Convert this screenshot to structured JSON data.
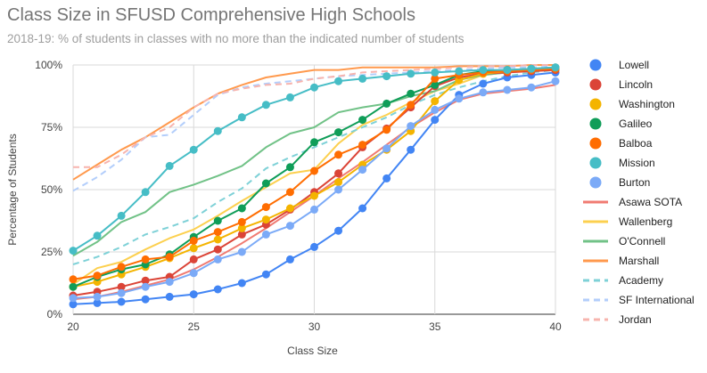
{
  "title": "Class Size in SFUSD Comprehensive High Schools",
  "subtitle": "2018-19: % of students in classes with no more than the indicated number of students",
  "chart_data": {
    "type": "line",
    "title": "Class Size in SFUSD Comprehensive High Schools",
    "subtitle": "2018-19: % of students in classes with no more than the indicated number of students",
    "xlabel": "Class Size",
    "ylabel": "Percentage of Students",
    "xlim": [
      20,
      40
    ],
    "ylim": [
      0,
      100
    ],
    "x_ticks": [
      20,
      25,
      30,
      35,
      40
    ],
    "y_ticks": [
      0,
      25,
      50,
      75,
      100
    ],
    "y_tick_labels": [
      "0%",
      "25%",
      "50%",
      "75%",
      "100%"
    ],
    "grid": true,
    "legend_position": "right",
    "x": [
      20,
      21,
      22,
      23,
      24,
      25,
      26,
      27,
      28,
      29,
      30,
      31,
      32,
      33,
      34,
      35,
      36,
      37,
      38,
      39,
      40
    ],
    "series": [
      {
        "name": "Lowell",
        "color": "#4285f4",
        "style": "points-line",
        "values": [
          4,
          4.5,
          5,
          6,
          7,
          8,
          10,
          12.5,
          16,
          22,
          27,
          33.5,
          42.5,
          54.5,
          66,
          78,
          88,
          92.5,
          95,
          96,
          97
        ]
      },
      {
        "name": "Lincoln",
        "color": "#db4437",
        "style": "points-line",
        "values": [
          7.5,
          9,
          11,
          13.5,
          15,
          22,
          26,
          32,
          36,
          42,
          49,
          56.5,
          67,
          74.5,
          83,
          91.5,
          95,
          96.5,
          97,
          97.5,
          98
        ]
      },
      {
        "name": "Washington",
        "color": "#f4b400",
        "style": "points-line",
        "values": [
          11,
          13,
          16,
          19,
          22.5,
          26.5,
          30,
          34.5,
          38,
          42.5,
          47.5,
          53,
          60,
          66,
          73.5,
          85.5,
          94,
          96.5,
          97.5,
          98,
          98.5
        ]
      },
      {
        "name": "Galileo",
        "color": "#0f9d58",
        "style": "points-line",
        "values": [
          11,
          15,
          18,
          20,
          24,
          31,
          37.5,
          42.5,
          52.5,
          59,
          69,
          73,
          78,
          84.5,
          88.5,
          92,
          96,
          97.5,
          98,
          98.5,
          99
        ]
      },
      {
        "name": "Balboa",
        "color": "#ff6d01",
        "style": "points-line",
        "values": [
          14,
          15.5,
          19,
          22,
          23,
          29.5,
          33,
          37,
          43,
          49,
          57.5,
          64,
          68,
          74,
          84,
          94.5,
          96,
          97,
          97.5,
          98,
          98.5
        ]
      },
      {
        "name": "Mission",
        "color": "#46bdc6",
        "style": "points-line",
        "values": [
          25.5,
          31.5,
          39.5,
          49,
          59.5,
          66,
          73.5,
          79,
          84,
          87,
          91,
          93.5,
          94.5,
          95.5,
          96.5,
          97,
          97.5,
          98,
          98,
          98.5,
          99
        ]
      },
      {
        "name": "Burton",
        "color": "#7baaf7",
        "style": "points-line",
        "values": [
          6.5,
          7,
          8.5,
          11,
          13,
          16.5,
          22,
          25,
          32,
          35.5,
          42,
          50,
          58,
          66.5,
          75.5,
          82,
          86.5,
          89,
          90,
          91,
          93.5
        ]
      },
      {
        "name": "Asawa SOTA",
        "color": "#f07b72",
        "style": "line",
        "values": [
          6,
          7,
          9,
          11.5,
          14,
          18,
          23,
          28.5,
          34.5,
          41,
          47.5,
          54.5,
          61,
          68,
          75,
          81,
          86,
          88.5,
          89.5,
          90.5,
          92
        ]
      },
      {
        "name": "Wallenberg",
        "color": "#fcd04f",
        "style": "line",
        "values": [
          12,
          18.5,
          21,
          26,
          30.5,
          34,
          39.5,
          45.5,
          51,
          56.5,
          58,
          68.5,
          76,
          80,
          85,
          89.5,
          92.5,
          96,
          97,
          98,
          99
        ]
      },
      {
        "name": "O'Connell",
        "color": "#71c287",
        "style": "line",
        "values": [
          23.5,
          29,
          37,
          41,
          49,
          52,
          55.5,
          59.5,
          67,
          72.5,
          75,
          81,
          83,
          84.5,
          87.5,
          89.5,
          94,
          96,
          97,
          98,
          99
        ]
      },
      {
        "name": "Marshall",
        "color": "#ff994d",
        "style": "line",
        "values": [
          54,
          60,
          66,
          71,
          77,
          83,
          88.5,
          92,
          95,
          96.5,
          98,
          98,
          99,
          99,
          99,
          99,
          99.5,
          99.5,
          99.5,
          100,
          100
        ]
      },
      {
        "name": "Academy",
        "color": "#7ed1d7",
        "style": "dashed",
        "values": [
          20,
          23,
          27,
          32,
          35,
          38.5,
          45,
          50.5,
          58.5,
          63,
          67,
          71,
          75,
          79,
          84,
          88,
          91,
          93.5,
          95.5,
          97,
          98
        ]
      },
      {
        "name": "SF International",
        "color": "#b3cefb",
        "style": "dashed",
        "values": [
          49.5,
          55,
          62,
          71,
          72,
          80,
          88,
          91,
          92.5,
          93.5,
          94.5,
          95.5,
          96,
          96.5,
          97,
          97.5,
          98,
          98.5,
          99,
          99,
          99.5
        ]
      },
      {
        "name": "Jordan",
        "color": "#f7b4ae",
        "style": "dashed",
        "values": [
          59,
          59,
          64,
          71,
          75,
          83,
          88.5,
          90.5,
          92,
          92.5,
          94.5,
          95.5,
          97,
          97.5,
          98,
          98.5,
          99,
          99.5,
          99.5,
          100,
          100
        ]
      }
    ]
  }
}
